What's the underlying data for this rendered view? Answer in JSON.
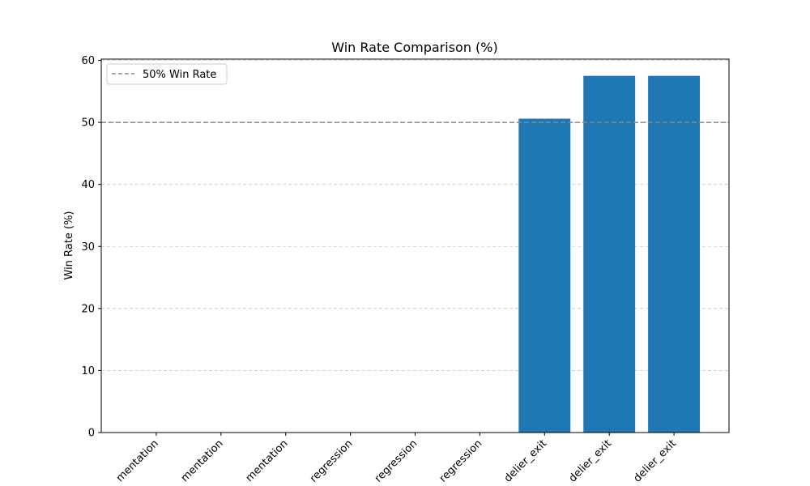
{
  "chart_data": {
    "type": "bar",
    "title": "Win Rate Comparison (%)",
    "xlabel": "",
    "ylabel": "Win Rate (%)",
    "ylim": [
      0,
      60
    ],
    "yticks": [
      0,
      10,
      20,
      30,
      40,
      50,
      60
    ],
    "grid": true,
    "categories": [
      "mentation",
      "mentation",
      "mentation",
      "regression",
      "regression",
      "regression",
      "delier_exit",
      "delier_exit",
      "delier_exit"
    ],
    "values": [
      0,
      0,
      0,
      0,
      0,
      0,
      50.6,
      57.5,
      57.5
    ],
    "bar_color": "#1f77b4",
    "reference_line": {
      "y": 50,
      "label": "50% Win Rate",
      "color": "#888888",
      "style": "dashed"
    },
    "legend": {
      "position": "top-left",
      "entries": [
        "50% Win Rate"
      ]
    }
  }
}
